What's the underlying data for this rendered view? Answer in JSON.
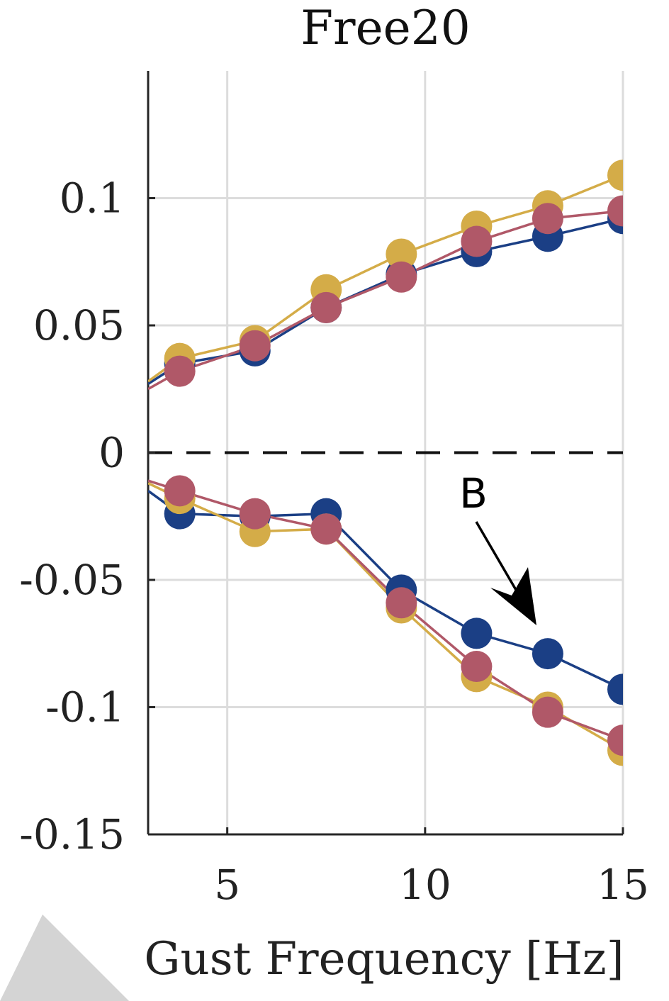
{
  "chart_data": {
    "type": "line",
    "title": "Free20",
    "xlabel": "Gust Frequency [Hz]",
    "ylabel": "",
    "xlim": [
      3,
      15
    ],
    "ylim": [
      -0.15,
      0.15
    ],
    "x_ticks": [
      5,
      10,
      15
    ],
    "y_ticks": [
      -0.15,
      -0.1,
      -0.05,
      0,
      0.05,
      0.1
    ],
    "x_tick_labels": [
      "5",
      "10",
      "15"
    ],
    "y_tick_labels": [
      "-0.15",
      "-0.1",
      "-0.05",
      "0",
      "0.05",
      "0.1"
    ],
    "grid": true,
    "zero_line": "dashed",
    "annotation": {
      "text": "B",
      "arrow_from": [
        12.3,
        -0.072
      ],
      "arrow_to": [
        13.0,
        -0.0685
      ]
    },
    "series": [
      {
        "group": "upper",
        "color": "#1b3f85",
        "x": [
          3.0,
          3.8,
          5.7,
          7.5,
          9.4,
          11.3,
          13.1,
          15.0
        ],
        "y": [
          0.027,
          0.035,
          0.04,
          0.057,
          0.07,
          0.079,
          0.085,
          0.092
        ]
      },
      {
        "group": "upper",
        "color": "#d4ac48",
        "x": [
          3.0,
          3.8,
          5.7,
          7.5,
          9.4,
          11.3,
          13.1,
          15.0
        ],
        "y": [
          0.028,
          0.037,
          0.044,
          0.064,
          0.078,
          0.089,
          0.097,
          0.109
        ]
      },
      {
        "group": "upper",
        "color": "#b05868",
        "x": [
          3.0,
          3.8,
          5.7,
          7.5,
          9.4,
          11.3,
          13.1,
          15.0
        ],
        "y": [
          0.025,
          0.032,
          0.042,
          0.057,
          0.069,
          0.083,
          0.092,
          0.095
        ]
      },
      {
        "group": "lower",
        "color": "#1b3f85",
        "x": [
          3.0,
          3.8,
          5.7,
          7.5,
          9.4,
          11.3,
          13.1,
          15.0
        ],
        "y": [
          -0.015,
          -0.024,
          -0.025,
          -0.024,
          -0.054,
          -0.071,
          -0.079,
          -0.093
        ]
      },
      {
        "group": "lower",
        "color": "#d4ac48",
        "x": [
          3.0,
          3.8,
          5.7,
          7.5,
          9.4,
          11.3,
          13.1,
          15.0
        ],
        "y": [
          -0.012,
          -0.018,
          -0.031,
          -0.03,
          -0.061,
          -0.088,
          -0.1,
          -0.117
        ]
      },
      {
        "group": "lower",
        "color": "#b05868",
        "x": [
          3.0,
          3.8,
          5.7,
          7.5,
          9.4,
          11.3,
          13.1,
          15.0
        ],
        "y": [
          -0.011,
          -0.015,
          -0.024,
          -0.03,
          -0.059,
          -0.084,
          -0.102,
          -0.113
        ]
      }
    ]
  }
}
